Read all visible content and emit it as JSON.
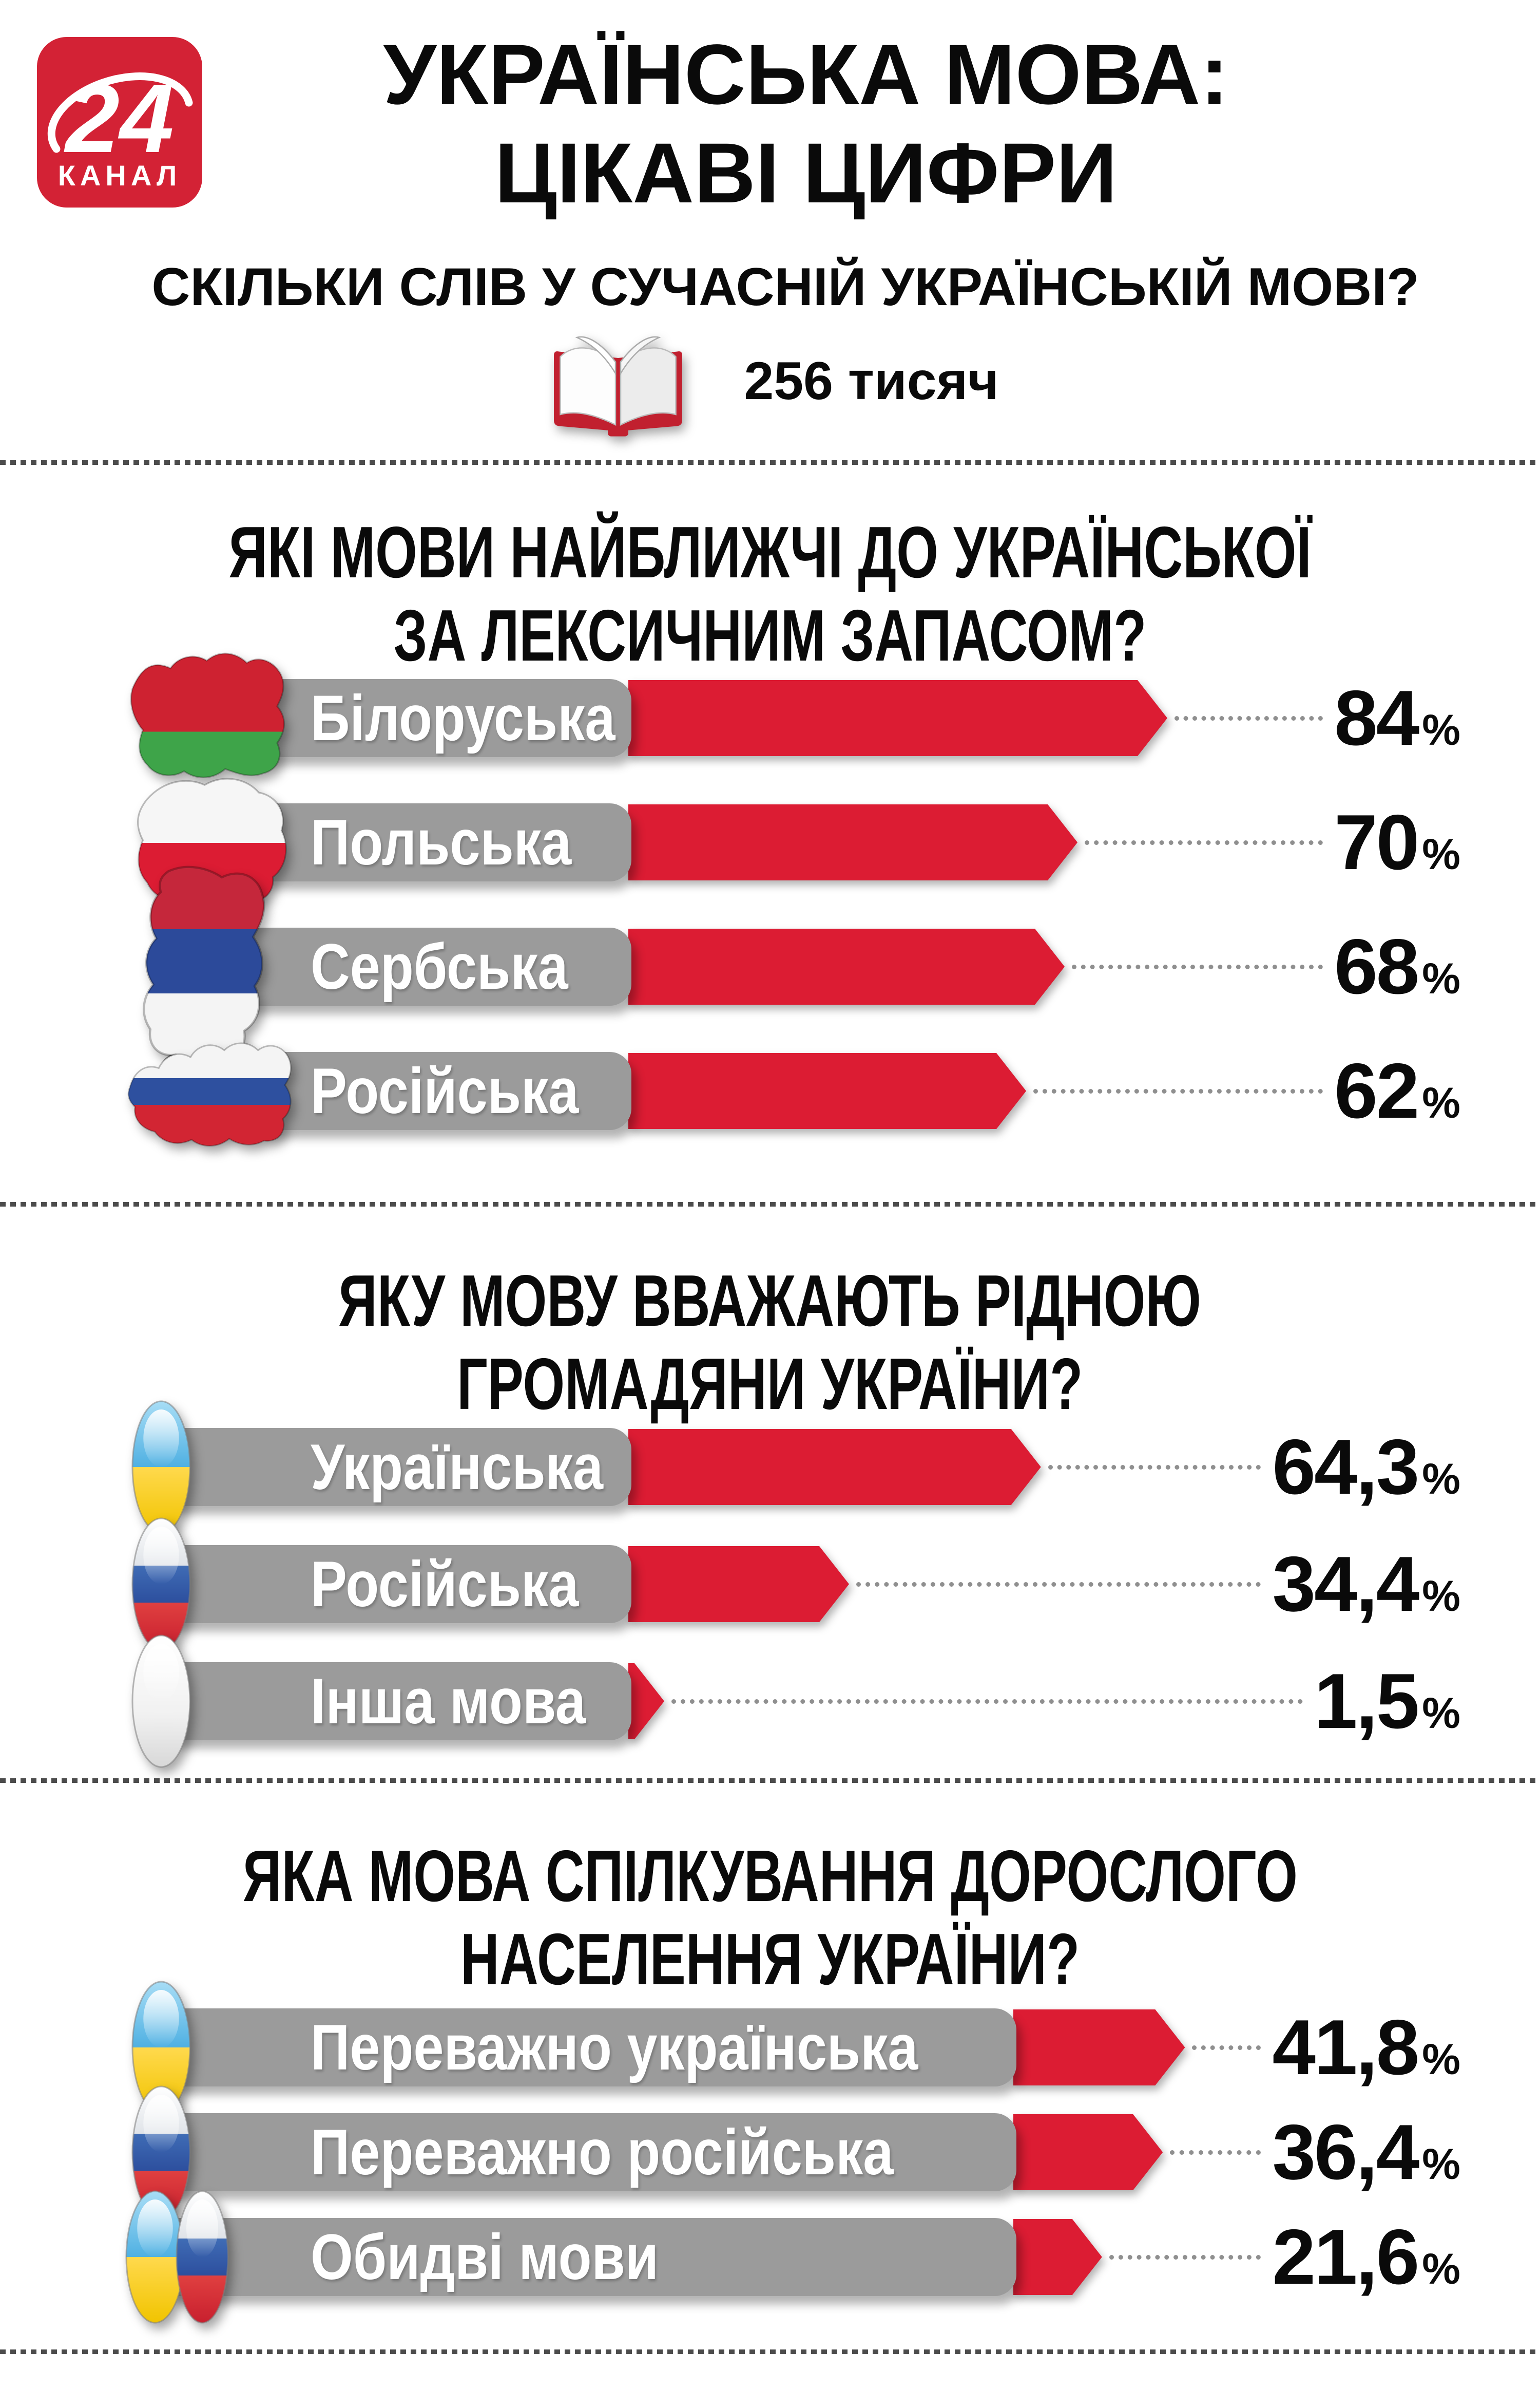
{
  "brand": {
    "logo_number": "24",
    "logo_text": "КАНАЛ"
  },
  "header": {
    "title_line1": "УКРАЇНСЬКА МОВА:",
    "title_line2": "ЦІКАВІ ЦИФРИ"
  },
  "intro": {
    "question": "СКІЛЬКИ СЛІВ У СУЧАСНІЙ УКРАЇНСЬКІЙ МОВІ?",
    "value": "256 тисяч",
    "icon": "open-book-icon"
  },
  "colors": {
    "accent_red": "#d32235",
    "bar_red": "#dc1c33",
    "pill_gray": "#9b9b9b",
    "divider_gray": "#4c4c4c",
    "text_black": "#0a0a0a"
  },
  "chart_data": [
    {
      "type": "bar",
      "orientation": "horizontal",
      "title": "ЯКІ МОВИ НАЙБЛИЖЧІ ДО УКРАЇНСЬКОЇ ЗА ЛЕКСИЧНИМ ЗАПАСОМ?",
      "title_lines": [
        "ЯКІ МОВИ НАЙБЛИЖЧІ ДО УКРАЇНСЬКОЇ",
        "ЗА ЛЕКСИЧНИМ ЗАПАСОМ?"
      ],
      "categories": [
        "Білоруська",
        "Польська",
        "Сербська",
        "Російська"
      ],
      "values": [
        84,
        70,
        68,
        62
      ],
      "value_labels": [
        "84",
        "70",
        "68",
        "62"
      ],
      "unit": "%",
      "xlim": [
        0,
        100
      ],
      "icons": [
        "belarus-map-flag",
        "poland-map-flag",
        "serbia-map-flag",
        "russia-map-flag"
      ]
    },
    {
      "type": "bar",
      "orientation": "horizontal",
      "title": "ЯКУ МОВУ ВВАЖАЮТЬ РІДНОЮ ГРОМАДЯНИ УКРАЇНИ?",
      "title_lines": [
        "ЯКУ МОВУ ВВАЖАЮТЬ РІДНОЮ",
        "ГРОМАДЯНИ УКРАЇНИ?"
      ],
      "categories": [
        "Українська",
        "Російська",
        "Інша мова"
      ],
      "values": [
        64.3,
        34.4,
        1.5
      ],
      "value_labels": [
        "64,3",
        "34,4",
        "1,5"
      ],
      "unit": "%",
      "xlim": [
        0,
        100
      ],
      "icons": [
        "ukraine-flag-ellipse",
        "russia-flag-ellipse",
        "other-language-ellipse"
      ]
    },
    {
      "type": "bar",
      "orientation": "horizontal",
      "title": "ЯКА МОВА СПІЛКУВАННЯ ДОРОСЛОГО НАСЕЛЕННЯ УКРАЇНИ?",
      "title_lines": [
        "ЯКА МОВА СПІЛКУВАННЯ ДОРОСЛОГО",
        "НАСЕЛЕННЯ УКРАЇНИ?"
      ],
      "categories": [
        "Переважно українська",
        "Переважно російська",
        "Обидві мови"
      ],
      "values": [
        41.8,
        36.4,
        21.6
      ],
      "value_labels": [
        "41,8",
        "36,4",
        "21,6"
      ],
      "unit": "%",
      "xlim": [
        0,
        100
      ],
      "icons": [
        "ukraine-flag-ellipse",
        "russia-flag-ellipse",
        "ukraine-russia-flag-ellipses"
      ]
    }
  ]
}
